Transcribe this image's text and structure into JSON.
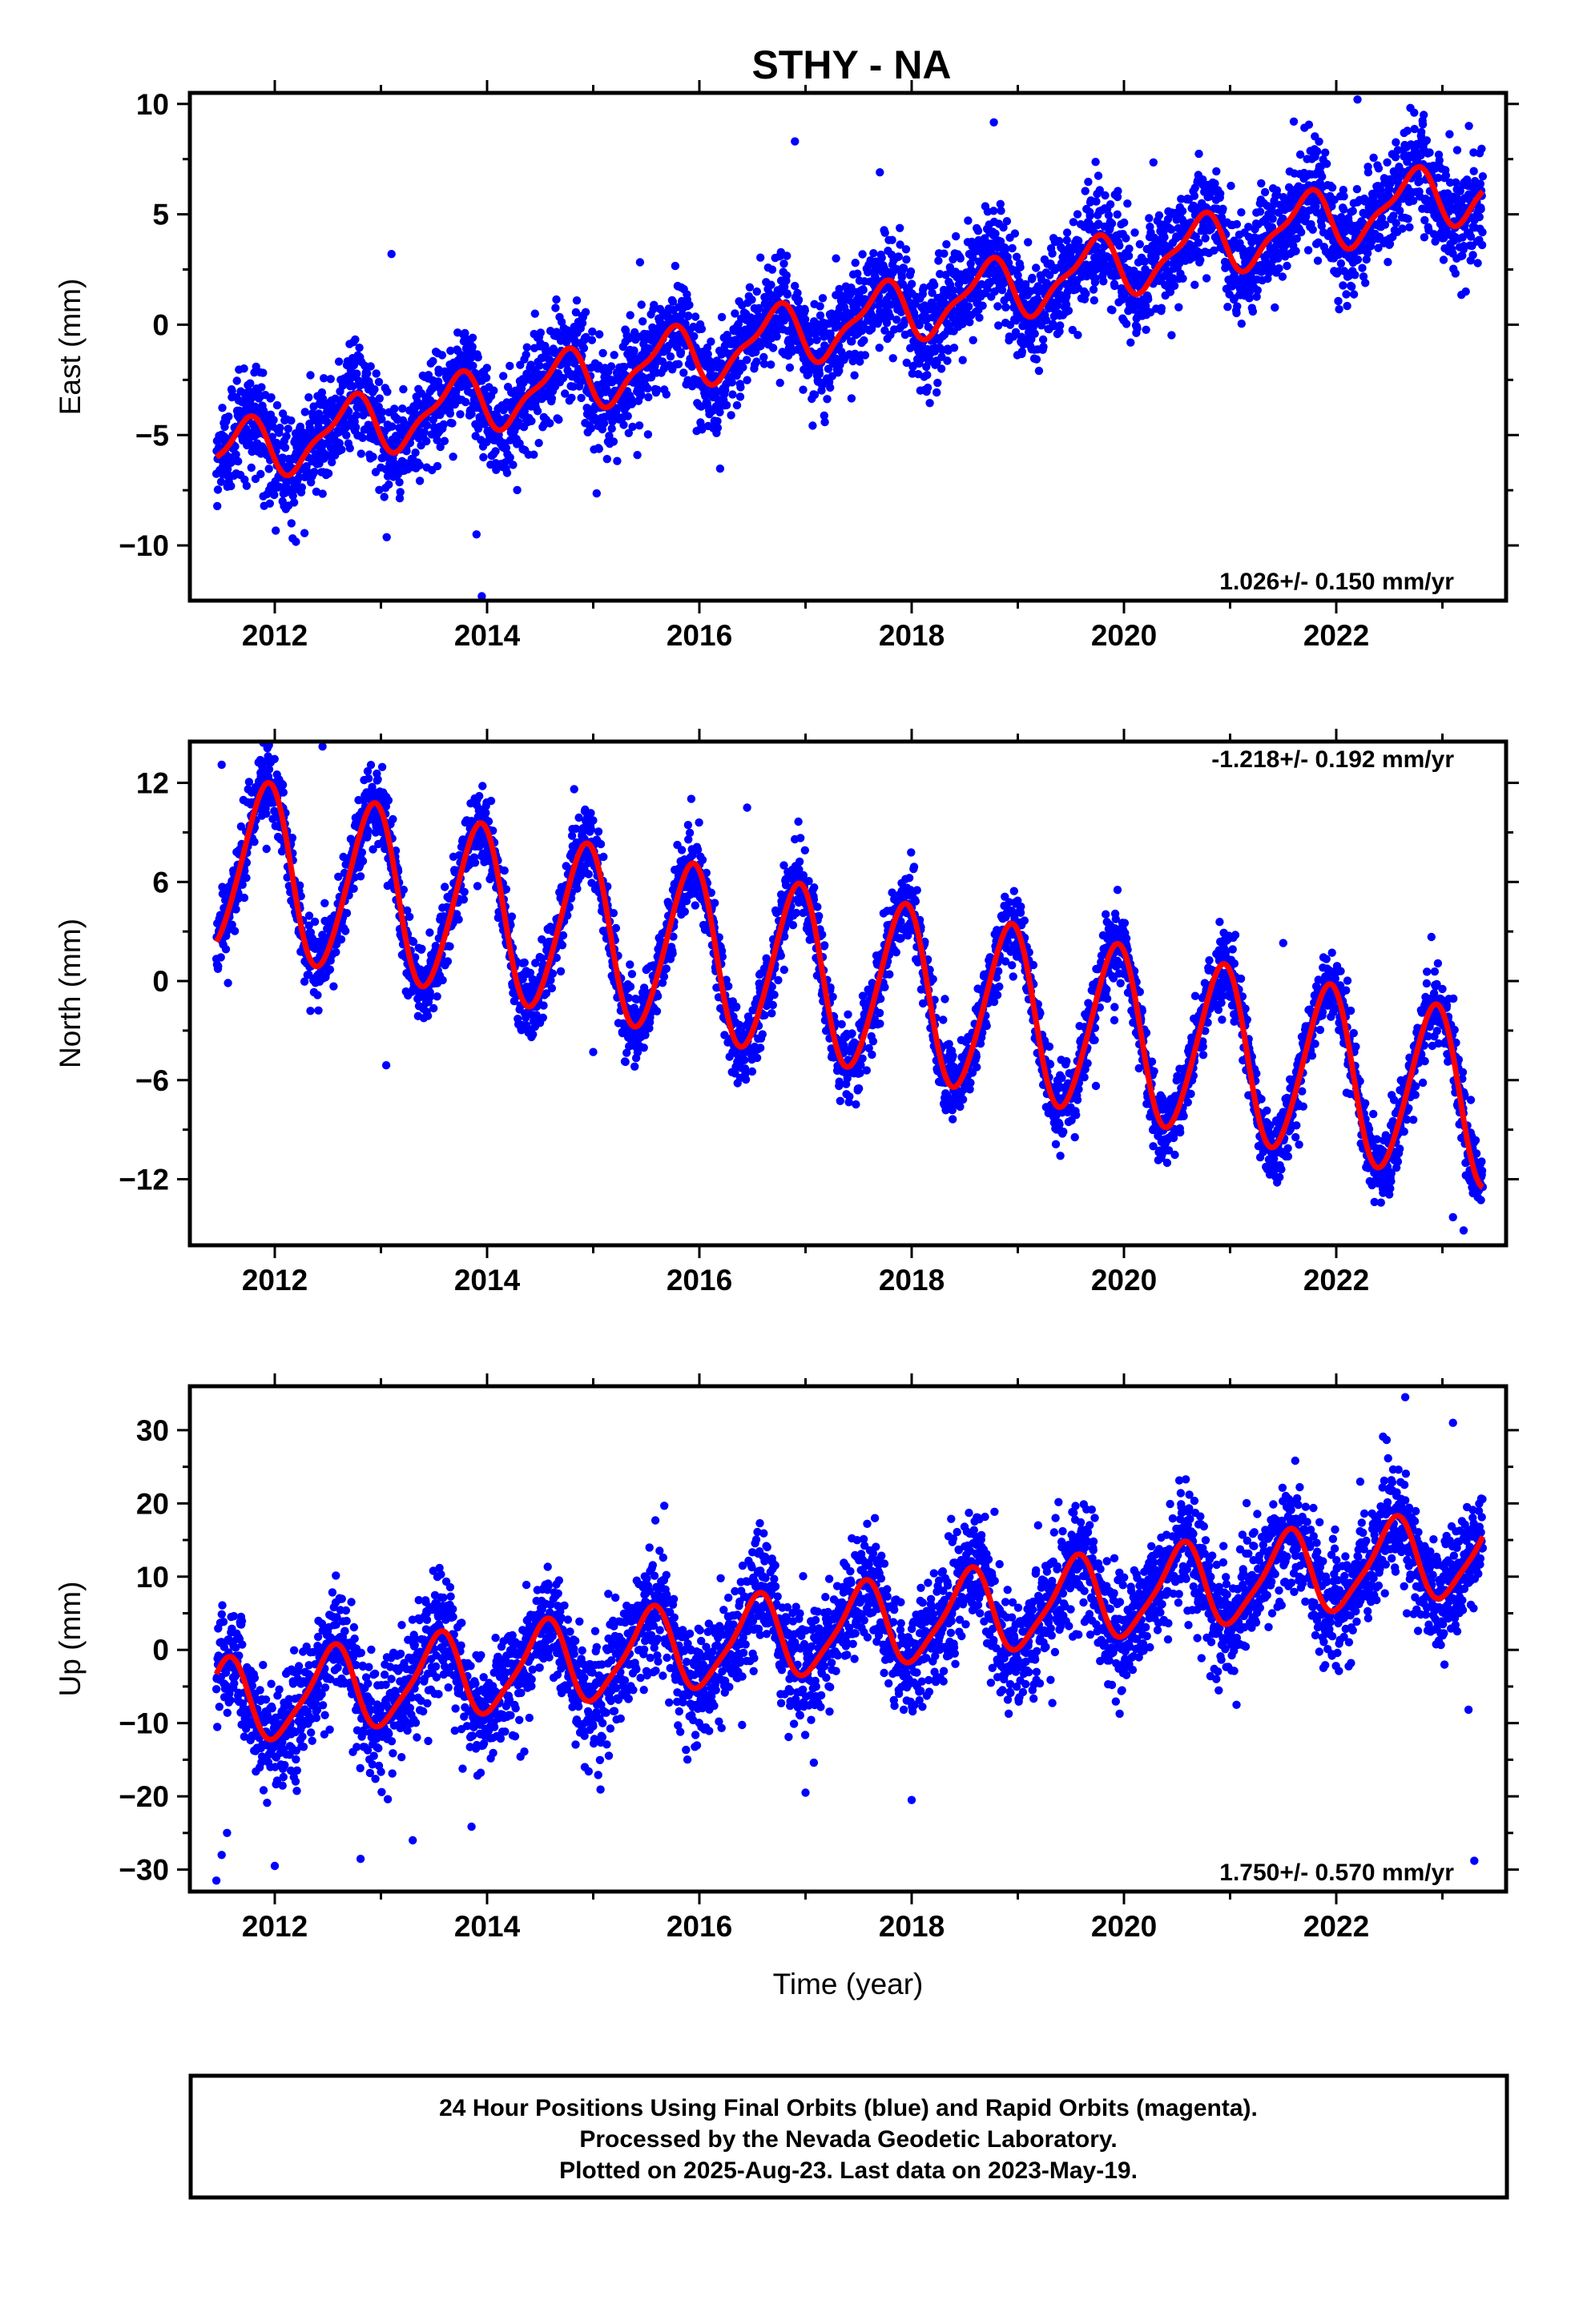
{
  "title": "STHY - NA",
  "footer": {
    "line1": "24 Hour Positions Using Final Orbits (blue) and Rapid Orbits (magenta).",
    "line2": "Processed by the Nevada Geodetic Laboratory.",
    "line3": "Plotted on 2025-Aug-23. Last data on 2023-May-19."
  },
  "colors": {
    "observed": "#0000ff",
    "model": "#ff0000",
    "frame": "#000000"
  },
  "chart_data": [
    {
      "type": "scatter",
      "component": "east",
      "ylabel": "East (mm)",
      "rate_label": "1.026+/- 0.150 mm/yr",
      "rate_position": "bottom-right",
      "xlim": [
        2011.2,
        2023.6
      ],
      "ylim": [
        -12.5,
        10.5
      ],
      "xticks": [
        2012,
        2014,
        2016,
        2018,
        2020,
        2022
      ],
      "yticks": [
        -10,
        -5,
        0,
        5,
        10
      ],
      "xtick_labels": [
        "2012",
        "2014",
        "2016",
        "2018",
        "2020",
        "2022"
      ],
      "ytick_labels": [
        "−10",
        "−5",
        "0",
        "5",
        "10"
      ],
      "time_range": [
        2011.45,
        2023.38
      ],
      "model": {
        "offset": -6.0,
        "rate": 1.026,
        "amp1": 1.3,
        "phase1": 0.55,
        "amp2": 0.45,
        "phase2": 0.3,
        "t0": 2011.45
      },
      "scatter_sd": 1.15,
      "outliers": [
        [
          2013.1,
          3.2
        ],
        [
          2016.9,
          8.3
        ],
        [
          2017.7,
          6.9
        ],
        [
          2013.9,
          -9.5
        ],
        [
          2013.95,
          -12.3
        ],
        [
          2021.6,
          9.2
        ],
        [
          2022.2,
          10.2
        ],
        [
          2023.25,
          9.0
        ]
      ]
    },
    {
      "type": "scatter",
      "component": "north",
      "ylabel": "North (mm)",
      "rate_label": "-1.218+/- 0.192 mm/yr",
      "rate_position": "top-right",
      "xlim": [
        2011.2,
        2023.6
      ],
      "ylim": [
        -16,
        14.5
      ],
      "xticks": [
        2012,
        2014,
        2016,
        2018,
        2020,
        2022
      ],
      "yticks": [
        -12,
        -6,
        0,
        6,
        12
      ],
      "xtick_labels": [
        "2012",
        "2014",
        "2016",
        "2018",
        "2020",
        "2022"
      ],
      "ytick_labels": [
        "−12",
        "−6",
        "0",
        "6",
        "12"
      ],
      "time_range": [
        2011.45,
        2023.38
      ],
      "model": {
        "offset": 7.2,
        "rate": -1.218,
        "amp1": 5.2,
        "phase1": 0.33,
        "amp2": 0.5,
        "phase2": 0.1,
        "t0": 2011.45
      },
      "scatter_sd": 1.1,
      "outliers": [
        [
          2011.5,
          13.1
        ],
        [
          2012.45,
          14.2
        ],
        [
          2013.05,
          -5.1
        ],
        [
          2015.0,
          -4.3
        ],
        [
          2016.45,
          10.5
        ],
        [
          2021.5,
          2.3
        ],
        [
          2023.1,
          -14.3
        ],
        [
          2023.2,
          -15.1
        ]
      ]
    },
    {
      "type": "scatter",
      "component": "up",
      "ylabel": "Up (mm)",
      "xlabel": "Time (year)",
      "rate_label": "1.750+/- 0.570 mm/yr",
      "rate_position": "bottom-right",
      "xlim": [
        2011.2,
        2023.6
      ],
      "ylim": [
        -33,
        36
      ],
      "xticks": [
        2012,
        2014,
        2016,
        2018,
        2020,
        2022
      ],
      "yticks": [
        -30,
        -20,
        -10,
        0,
        10,
        20,
        30
      ],
      "xtick_labels": [
        "2012",
        "2014",
        "2016",
        "2018",
        "2020",
        "2022"
      ],
      "ytick_labels": [
        "−30",
        "−20",
        "−10",
        "0",
        "10",
        "20",
        "30"
      ],
      "time_range": [
        2011.45,
        2023.38
      ],
      "model": {
        "offset": -7.5,
        "rate": 1.75,
        "amp1": 5.6,
        "phase1": 0.72,
        "amp2": 1.2,
        "phase2": 0.5,
        "t0": 2011.45
      },
      "scatter_sd": 3.8,
      "outliers": [
        [
          2011.45,
          -31.5
        ],
        [
          2011.5,
          -28.0
        ],
        [
          2011.55,
          -25.0
        ],
        [
          2012.0,
          -29.5
        ],
        [
          2013.3,
          -26.0
        ],
        [
          2022.65,
          34.5
        ],
        [
          2023.1,
          31.0
        ],
        [
          2023.3,
          -28.8
        ],
        [
          2017.0,
          -19.5
        ],
        [
          2018.0,
          -20.5
        ]
      ]
    }
  ]
}
